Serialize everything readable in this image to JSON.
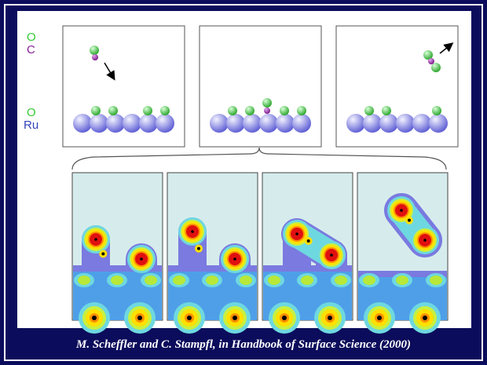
{
  "labels": {
    "o_top": "O",
    "c": "C",
    "o_bottom": "O",
    "ru": "Ru"
  },
  "caption": "M. Scheffler and C. Stampfl, in Handbook of Surface Science (2000)"
}
